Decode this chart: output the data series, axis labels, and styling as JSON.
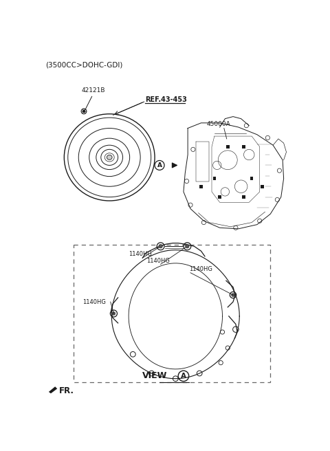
{
  "title_text": "(3500CC>DOHC-GDI)",
  "bg_color": "#ffffff",
  "line_color": "#1a1a1a",
  "gray_color": "#888888",
  "label_42121B": "42121B",
  "label_ref": "REF.43-453",
  "label_45000A": "45000A",
  "label_1140HG": "1140HG",
  "label_view": "VIEW",
  "label_A_circle": "A",
  "label_FR": "FR.",
  "title_fontsize": 7.5,
  "part_label_fontsize": 6.5,
  "view_fontsize": 9
}
